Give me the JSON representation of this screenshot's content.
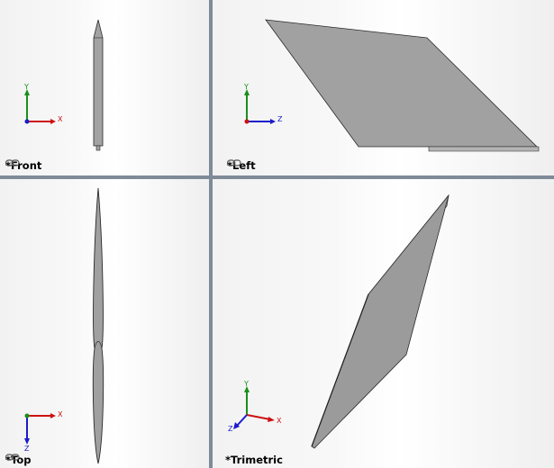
{
  "viewports": {
    "front": {
      "label": "*Front",
      "axes": {
        "up": "Y",
        "right": "X"
      }
    },
    "left": {
      "label": "*Left",
      "axes": {
        "up": "Y",
        "right": "Z"
      }
    },
    "top": {
      "label": "*Top",
      "axes": {
        "down": "Z",
        "right": "X"
      }
    },
    "trimetric": {
      "label": "*Trimetric",
      "axes": {
        "up": "Y",
        "right": "X",
        "front": "Z"
      }
    }
  },
  "icons": {
    "view_link": "link-chain-icon",
    "triad": "axis-triad-icon"
  },
  "colors": {
    "background": "#ffffff",
    "separator": "#7f8a99",
    "part_fill": "#9a9a9a",
    "x_axis": "#cc1111",
    "y_axis": "#1a8f1a",
    "z_axis": "#1a1acc"
  }
}
